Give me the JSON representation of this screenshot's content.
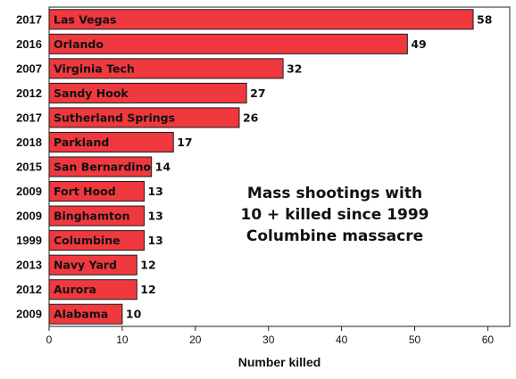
{
  "chart_data": {
    "type": "bar",
    "orientation": "horizontal",
    "categories": [
      "Las Vegas",
      "Orlando",
      "Virginia Tech",
      "Sandy Hook",
      "Sutherland Springs",
      "Parkland",
      "San Bernardino",
      "Fort Hood",
      "Binghamton",
      "Columbine",
      "Navy Yard",
      "Aurora",
      "Alabama"
    ],
    "years": [
      "2017",
      "2016",
      "2007",
      "2012",
      "2017",
      "2018",
      "2015",
      "2009",
      "2009",
      "1999",
      "2013",
      "2012",
      "2009"
    ],
    "values": [
      58,
      49,
      32,
      27,
      26,
      17,
      14,
      13,
      13,
      13,
      12,
      12,
      10
    ],
    "xlabel": "Number killed",
    "ylabel": "",
    "xlim": [
      0,
      63
    ],
    "xticks": [
      0,
      10,
      20,
      30,
      40,
      50,
      60
    ],
    "annotation": [
      "Mass shootings with",
      "10 + killed since 1999",
      "Columbine massacre"
    ],
    "bar_color": "#f0393f",
    "grid": false,
    "legend": "none"
  }
}
